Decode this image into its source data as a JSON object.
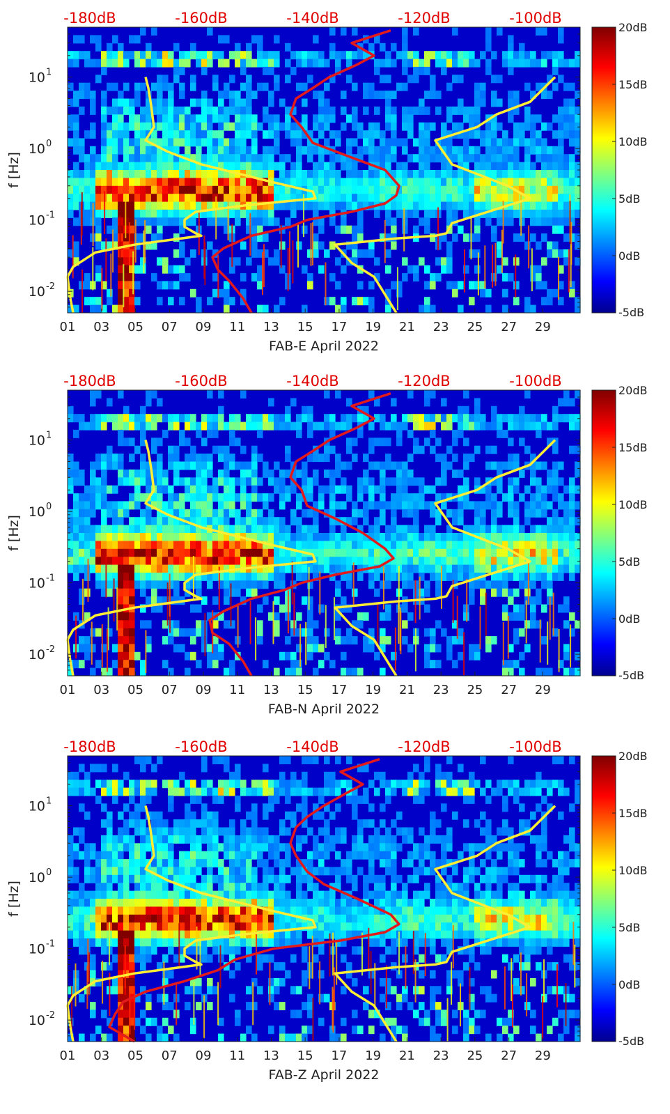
{
  "colors": {
    "jet": [
      "#00008f",
      "#0000ff",
      "#0080ff",
      "#00ffff",
      "#80ff80",
      "#ffff00",
      "#ff8000",
      "#ff0000",
      "#800000"
    ],
    "yellow_curve": "#ffee33",
    "red_curve": "#e31a1c",
    "top_axis_text": "#e00000",
    "axis": "#222222"
  },
  "figure": {
    "y_axis_label": "f [Hz]",
    "x_tick_labels": [
      "01",
      "03",
      "05",
      "07",
      "09",
      "11",
      "13",
      "15",
      "17",
      "19",
      "21",
      "23",
      "25",
      "27",
      "29"
    ],
    "y_tick_labels": [
      "10",
      "10",
      "10",
      "10"
    ],
    "y_tick_exponents": [
      "1",
      "0",
      "-1",
      "-2"
    ],
    "top_tick_labels": [
      "-180dB",
      "-160dB",
      "-140dB",
      "-120dB",
      "-100dB"
    ],
    "colorbar_labels": [
      "20dB",
      "15dB",
      "10dB",
      "5dB",
      "0dB",
      "-5dB"
    ]
  },
  "chart_data": [
    {
      "type": "heatmap",
      "title": "FAB-E April 2022",
      "xlabel": "FAB-E April 2022",
      "ylabel": "f [Hz]",
      "x_axis": {
        "unit": "day of April 2022",
        "range": [
          1,
          31.2
        ],
        "ticks": [
          1,
          3,
          5,
          7,
          9,
          11,
          13,
          15,
          17,
          19,
          21,
          23,
          25,
          27,
          29
        ]
      },
      "y_axis": {
        "scale": "log",
        "unit": "Hz",
        "range": [
          0.005,
          50
        ],
        "ticks": [
          10,
          1,
          0.1,
          0.01
        ]
      },
      "top_axis": {
        "unit": "dB",
        "range": [
          -184,
          -92
        ],
        "ticks": [
          -180,
          -160,
          -140,
          -120,
          -100
        ]
      },
      "colorbar": {
        "colormap": "jet",
        "range": [
          -5,
          20
        ],
        "ticks": [
          20,
          15,
          10,
          5,
          0,
          -5
        ]
      },
      "series": [
        {
          "color": "yellow",
          "freq_hz": [
            0.005,
            0.008,
            0.016,
            0.022,
            0.035,
            0.045,
            0.06,
            0.065,
            0.08,
            0.1,
            0.13,
            0.16,
            0.2,
            0.25,
            0.35,
            0.6,
            0.9,
            1.3,
            2,
            4,
            7,
            10
          ],
          "level_db": [
            -183,
            -183.5,
            -184,
            -183,
            -179,
            -172,
            -160,
            -161,
            -163,
            -163,
            -161,
            -152,
            -139.5,
            -140,
            -148,
            -160,
            -166,
            -170,
            -168.5,
            -169,
            -169.5,
            -170
          ]
        },
        {
          "color": "yellow",
          "freq_hz": [
            0.005,
            0.016,
            0.025,
            0.045,
            0.055,
            0.06,
            0.065,
            0.09,
            0.15,
            0.2,
            0.3,
            0.6,
            1.3,
            2,
            3,
            4.5,
            7,
            10
          ],
          "level_db": [
            -125,
            -129,
            -133,
            -136,
            -125,
            -118,
            -116,
            -115,
            -106,
            -101,
            -105,
            -115,
            -118,
            -110.5,
            -107,
            -101,
            -98.5,
            -96.5
          ]
        },
        {
          "color": "red",
          "freq_hz": [
            0.005,
            0.008,
            0.014,
            0.02,
            0.03,
            0.04,
            0.06,
            0.08,
            0.1,
            0.13,
            0.17,
            0.22,
            0.3,
            0.5,
            0.8,
            1.2,
            2,
            3,
            5,
            7,
            10,
            15,
            20,
            30,
            45
          ],
          "level_db": [
            -151,
            -152.5,
            -155,
            -157,
            -158,
            -156,
            -151,
            -144,
            -141,
            -133,
            -127,
            -125,
            -124.5,
            -127,
            -134,
            -140,
            -142,
            -144,
            -143,
            -140,
            -137,
            -132,
            -129,
            -133,
            -126
          ]
        }
      ]
    },
    {
      "type": "heatmap",
      "title": "FAB-N April 2022",
      "xlabel": "FAB-N April 2022",
      "ylabel": "f [Hz]",
      "x_axis": {
        "unit": "day of April 2022",
        "range": [
          1,
          31.2
        ],
        "ticks": [
          1,
          3,
          5,
          7,
          9,
          11,
          13,
          15,
          17,
          19,
          21,
          23,
          25,
          27,
          29
        ]
      },
      "y_axis": {
        "scale": "log",
        "unit": "Hz",
        "range": [
          0.005,
          50
        ],
        "ticks": [
          10,
          1,
          0.1,
          0.01
        ]
      },
      "top_axis": {
        "unit": "dB",
        "range": [
          -184,
          -92
        ],
        "ticks": [
          -180,
          -160,
          -140,
          -120,
          -100
        ]
      },
      "colorbar": {
        "colormap": "jet",
        "range": [
          -5,
          20
        ],
        "ticks": [
          20,
          15,
          10,
          5,
          0,
          -5
        ]
      },
      "series": [
        {
          "color": "yellow",
          "freq_hz": [
            0.005,
            0.008,
            0.016,
            0.022,
            0.035,
            0.045,
            0.06,
            0.065,
            0.08,
            0.1,
            0.13,
            0.16,
            0.2,
            0.25,
            0.35,
            0.6,
            0.9,
            1.3,
            2,
            4,
            7,
            10
          ],
          "level_db": [
            -183,
            -183.5,
            -184,
            -183,
            -179,
            -172,
            -160,
            -161,
            -163,
            -163,
            -161,
            -152,
            -139.5,
            -140,
            -148,
            -160,
            -166,
            -170,
            -168.5,
            -169,
            -169.5,
            -170
          ]
        },
        {
          "color": "yellow",
          "freq_hz": [
            0.005,
            0.016,
            0.025,
            0.045,
            0.055,
            0.06,
            0.065,
            0.09,
            0.15,
            0.2,
            0.3,
            0.6,
            1.3,
            2,
            3,
            4.5,
            7,
            10
          ],
          "level_db": [
            -125,
            -129,
            -133,
            -136,
            -125,
            -118,
            -116,
            -115,
            -106,
            -101,
            -105,
            -115,
            -118,
            -110.5,
            -107,
            -101,
            -98.5,
            -96.5
          ]
        },
        {
          "color": "red",
          "freq_hz": [
            0.005,
            0.008,
            0.014,
            0.02,
            0.03,
            0.04,
            0.06,
            0.08,
            0.1,
            0.13,
            0.17,
            0.22,
            0.3,
            0.5,
            0.8,
            1.2,
            2,
            3,
            5,
            7,
            10,
            15,
            20,
            30,
            45
          ],
          "level_db": [
            -151,
            -152.5,
            -155,
            -158,
            -158.5,
            -156,
            -151,
            -145,
            -142,
            -136,
            -128,
            -125.5,
            -127,
            -131,
            -136,
            -141,
            -142,
            -144,
            -143,
            -140,
            -137,
            -132,
            -129,
            -133,
            -126
          ]
        }
      ]
    },
    {
      "type": "heatmap",
      "title": "FAB-Z April 2022",
      "xlabel": "FAB-Z April 2022",
      "ylabel": "f [Hz]",
      "x_axis": {
        "unit": "day of April 2022",
        "range": [
          1,
          31.2
        ],
        "ticks": [
          1,
          3,
          5,
          7,
          9,
          11,
          13,
          15,
          17,
          19,
          21,
          23,
          25,
          27,
          29
        ]
      },
      "y_axis": {
        "scale": "log",
        "unit": "Hz",
        "range": [
          0.005,
          50
        ],
        "ticks": [
          10,
          1,
          0.1,
          0.01
        ]
      },
      "top_axis": {
        "unit": "dB",
        "range": [
          -184,
          -92
        ],
        "ticks": [
          -180,
          -160,
          -140,
          -120,
          -100
        ]
      },
      "colorbar": {
        "colormap": "jet",
        "range": [
          -5,
          20
        ],
        "ticks": [
          20,
          15,
          10,
          5,
          0,
          -5
        ]
      },
      "series": [
        {
          "color": "yellow",
          "freq_hz": [
            0.005,
            0.008,
            0.016,
            0.022,
            0.035,
            0.045,
            0.06,
            0.065,
            0.08,
            0.1,
            0.13,
            0.16,
            0.2,
            0.25,
            0.35,
            0.6,
            0.9,
            1.3,
            2,
            4,
            7,
            10
          ],
          "level_db": [
            -183,
            -183.5,
            -184,
            -183,
            -179,
            -172,
            -160,
            -161,
            -163,
            -163,
            -161,
            -152,
            -139.5,
            -140,
            -148,
            -160,
            -166,
            -170,
            -168.5,
            -169,
            -169.5,
            -170
          ]
        },
        {
          "color": "yellow",
          "freq_hz": [
            0.005,
            0.016,
            0.025,
            0.045,
            0.055,
            0.06,
            0.065,
            0.09,
            0.15,
            0.2,
            0.3,
            0.6,
            1.3,
            2,
            3,
            4.5,
            7,
            10
          ],
          "level_db": [
            -125,
            -129,
            -133,
            -136,
            -125,
            -118,
            -116,
            -115,
            -106,
            -101,
            -105,
            -115,
            -118,
            -110.5,
            -107,
            -101,
            -98.5,
            -96.5
          ]
        },
        {
          "color": "red",
          "freq_hz": [
            0.005,
            0.008,
            0.012,
            0.018,
            0.025,
            0.035,
            0.05,
            0.07,
            0.1,
            0.13,
            0.17,
            0.22,
            0.3,
            0.5,
            0.8,
            1.2,
            2,
            3,
            5,
            7,
            10,
            15,
            20,
            30,
            45
          ],
          "level_db": [
            -172,
            -176.5,
            -175.5,
            -174,
            -170,
            -163,
            -157,
            -154,
            -147,
            -135,
            -127,
            -124.5,
            -126,
            -132,
            -138,
            -141,
            -143,
            -144,
            -143,
            -141,
            -138,
            -134,
            -131,
            -135,
            -128
          ]
        }
      ]
    }
  ]
}
